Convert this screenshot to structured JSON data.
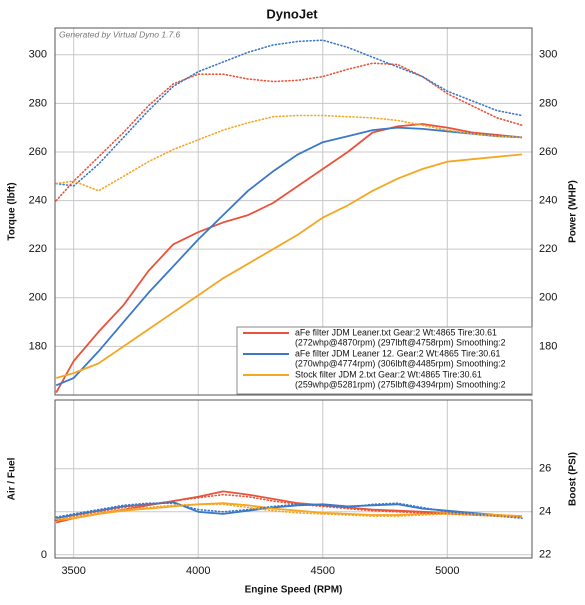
{
  "chart_data": [
    {
      "type": "line",
      "title": "DynoJet",
      "annotation": "Generated by Virtual Dyno 1.7.6",
      "ylabel": "Torque (lbft)",
      "y2label": "Power (WHP)",
      "x": [
        3430,
        3500,
        3600,
        3700,
        3800,
        3900,
        4000,
        4100,
        4200,
        4300,
        4400,
        4500,
        4600,
        4700,
        4800,
        4900,
        5000,
        5100,
        5200,
        5300
      ],
      "xlim": [
        3425,
        5340
      ],
      "xticks": [
        3500,
        4000,
        4500,
        5000
      ],
      "ylim": [
        160,
        311
      ],
      "yticks": [
        180,
        200,
        220,
        240,
        260,
        280,
        300
      ],
      "y2lim": [
        160,
        311
      ],
      "y2ticks": [
        180,
        200,
        220,
        240,
        260,
        280,
        300
      ],
      "grid": true,
      "series": [
        {
          "name": "aFe filter JDM Leaner.txt Gear:2 Wt:4865 Tire:30.61",
          "legend_detail": "(272whp@4870rpm) (297lbft@4758rpm) Smoothing:2",
          "color": "#e8533a",
          "axis": "y2",
          "dashed": false,
          "values": [
            161,
            174,
            186,
            197,
            211,
            222,
            227,
            231,
            234,
            239,
            246,
            253,
            260,
            268,
            270.5,
            271.5,
            270,
            268,
            267,
            266
          ]
        },
        {
          "name": "aFe filter JDM Leaner 12. Gear:2 Wt:4865 Tire:30.61",
          "legend_detail": "(270whp@4774rpm) (306lbft@4485rpm) Smoothing:2",
          "color": "#3a78c8",
          "axis": "y2",
          "dashed": false,
          "values": [
            164,
            167,
            178,
            190,
            202,
            213,
            224,
            234,
            244,
            252,
            259,
            264,
            266.5,
            269,
            270,
            269.5,
            268.5,
            267.5,
            266.5,
            266
          ]
        },
        {
          "name": "Stock filter JDM 2.txt Gear:2 Wt:4865 Tire:30.61",
          "legend_detail": "(259whp@5281rpm) (275lbft@4394rpm) Smoothing:2",
          "color": "#f5a623",
          "axis": "y2",
          "dashed": false,
          "values": [
            167,
            169,
            173,
            180,
            187,
            194,
            201,
            208,
            214,
            220,
            226,
            233,
            238,
            244,
            249,
            253,
            256,
            257,
            258,
            259
          ]
        },
        {
          "color": "#e8533a",
          "dashed": true,
          "values": [
            240,
            248,
            258,
            268,
            279,
            288,
            292,
            292,
            290,
            289,
            289.5,
            291,
            294,
            296.5,
            296,
            291,
            284,
            279,
            274,
            271
          ]
        },
        {
          "color": "#3a78c8",
          "dashed": true,
          "values": [
            247,
            246,
            255,
            266,
            277,
            287,
            293,
            297,
            301,
            304,
            305.5,
            306,
            303,
            299,
            295,
            291,
            285,
            281,
            277,
            275
          ]
        },
        {
          "color": "#f5a623",
          "dashed": true,
          "values": [
            247,
            248,
            244,
            250,
            256,
            261,
            265,
            269,
            272,
            274.5,
            275,
            275,
            274.5,
            274,
            273,
            271,
            269,
            267.5,
            266.5,
            266
          ]
        }
      ]
    },
    {
      "type": "line",
      "xlabel": "Engine Speed (RPM)",
      "ylabel": "Air / Fuel",
      "y2label": "Boost (PSI)",
      "x": [
        3430,
        3500,
        3600,
        3700,
        3800,
        3900,
        4000,
        4100,
        4200,
        4300,
        4400,
        4500,
        4600,
        4700,
        4800,
        4900,
        5000,
        5100,
        5200,
        5300
      ],
      "xlim": [
        3425,
        5340
      ],
      "xticks": [
        3500,
        4000,
        4500,
        5000
      ],
      "ylim": [
        0,
        20
      ],
      "yticks": [
        0
      ],
      "y2lim": [
        21.85,
        29.2
      ],
      "y2ticks": [
        22,
        24,
        26
      ],
      "grid": true,
      "series": [
        {
          "color": "#e8533a",
          "axis": "y2",
          "dashed": false,
          "values": [
            23.5,
            23.7,
            23.9,
            24.1,
            24.3,
            24.5,
            24.7,
            24.95,
            24.8,
            24.6,
            24.4,
            24.3,
            24.2,
            24.1,
            24.05,
            24.0,
            23.95,
            23.9,
            23.85,
            23.8
          ]
        },
        {
          "color": "#3a78c8",
          "axis": "y2",
          "dashed": false,
          "values": [
            23.7,
            23.85,
            24.05,
            24.25,
            24.35,
            24.45,
            24.0,
            23.9,
            24.05,
            24.2,
            24.3,
            24.35,
            24.25,
            24.3,
            24.35,
            24.15,
            24.05,
            23.95,
            23.85,
            23.75
          ]
        },
        {
          "color": "#f5a623",
          "axis": "y2",
          "dashed": false,
          "values": [
            23.6,
            23.7,
            23.9,
            24.05,
            24.15,
            24.25,
            24.35,
            24.4,
            24.3,
            24.15,
            24.05,
            23.95,
            23.9,
            23.85,
            23.85,
            23.9,
            23.95,
            23.9,
            23.85,
            23.8
          ]
        },
        {
          "color": "#e8533a",
          "axis": "y2",
          "dashed": true,
          "values": [
            23.6,
            23.8,
            24.0,
            24.2,
            24.35,
            24.5,
            24.65,
            24.8,
            24.7,
            24.5,
            24.35,
            24.25,
            24.15,
            24.05,
            24.0,
            23.95,
            23.9,
            23.85,
            23.8,
            23.75
          ]
        },
        {
          "color": "#3a78c8",
          "axis": "y2",
          "dashed": true,
          "values": [
            23.75,
            23.9,
            24.1,
            24.3,
            24.4,
            24.4,
            24.1,
            24.0,
            24.1,
            24.25,
            24.35,
            24.3,
            24.2,
            24.35,
            24.4,
            24.2,
            24.0,
            23.9,
            23.8,
            23.7
          ]
        },
        {
          "color": "#f5a623",
          "axis": "y2",
          "dashed": true,
          "values": [
            23.65,
            23.75,
            23.95,
            24.1,
            24.2,
            24.3,
            24.35,
            24.35,
            24.2,
            24.05,
            23.95,
            23.9,
            23.85,
            23.8,
            23.8,
            23.85,
            23.9,
            23.85,
            23.8,
            23.75
          ]
        }
      ]
    }
  ]
}
